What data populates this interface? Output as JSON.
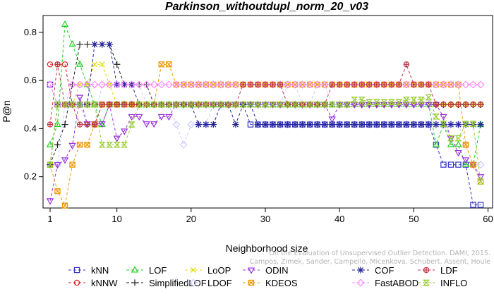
{
  "chart_data": {
    "type": "line",
    "title": "Parkinson_withoutdupl_norm_20_v03",
    "xlabel": "Neighborhood size",
    "ylabel": "P@n",
    "xlim": [
      1,
      59
    ],
    "ylim": [
      0.07,
      0.87
    ],
    "xticks": [
      1,
      10,
      20,
      30,
      40,
      50,
      60
    ],
    "yticks": [
      0.2,
      0.4,
      0.6,
      0.8
    ],
    "grid": false,
    "legend_position": "bottom",
    "credit": "Campos, Zimek, Sander, Campello, Micenkova, Schubert, Assent, Houle",
    "credit_line1": "On the Evaluation of Unsupervised Outlier Detection. DAMI, 2015.",
    "series": [
      {
        "name": "kNN",
        "color": "#3333cc",
        "marker": "square",
        "values": [
          0.583,
          0.5,
          0.5,
          0.5,
          0.5,
          0.5,
          0.5,
          0.5,
          0.5,
          0.5,
          0.5,
          0.5,
          0.5,
          0.5,
          0.5,
          0.5,
          0.5,
          0.5,
          0.5,
          0.5,
          0.5,
          0.5,
          0.5,
          0.5,
          0.5,
          0.5,
          0.5,
          0.417,
          0.417,
          0.417,
          0.417,
          0.417,
          0.417,
          0.417,
          0.417,
          0.417,
          0.417,
          0.417,
          0.417,
          0.417,
          0.417,
          0.417,
          0.417,
          0.417,
          0.417,
          0.417,
          0.417,
          0.417,
          0.417,
          0.417,
          0.417,
          0.417,
          0.333,
          0.25,
          0.25,
          0.25,
          0.25,
          0.083,
          0.083
        ]
      },
      {
        "name": "kNNW",
        "color": "#dd2222",
        "marker": "circle",
        "values": [
          0.667,
          0.667,
          0.667,
          0.5,
          0.5,
          0.5,
          0.5,
          0.5,
          0.5,
          0.5,
          0.5,
          0.5,
          0.5,
          0.5,
          0.5,
          0.5,
          0.5,
          0.5,
          0.5,
          0.5,
          0.5,
          0.5,
          0.5,
          0.5,
          0.5,
          0.5,
          0.5,
          0.5,
          0.5,
          0.5,
          0.5,
          0.5,
          0.5,
          0.5,
          0.5,
          0.5,
          0.5,
          0.5,
          0.5,
          0.5,
          0.5,
          0.5,
          0.5,
          0.5,
          0.5,
          0.5,
          0.5,
          0.5,
          0.5,
          0.5,
          0.5,
          0.5,
          0.5,
          0.5,
          0.5,
          0.5,
          0.5,
          0.5,
          0.5
        ]
      },
      {
        "name": "LOF",
        "color": "#22cc22",
        "marker": "triangle-up",
        "values": [
          0.333,
          0.417,
          0.833,
          0.75,
          0.667,
          0.583,
          0.5,
          0.417,
          0.5,
          0.5,
          0.5,
          0.5,
          0.5,
          0.5,
          0.5,
          0.5,
          0.5,
          0.5,
          0.5,
          0.5,
          0.5,
          0.5,
          0.5,
          0.5,
          0.5,
          0.5,
          0.5,
          0.5,
          0.5,
          0.5,
          0.5,
          0.5,
          0.5,
          0.5,
          0.5,
          0.5,
          0.5,
          0.5,
          0.5,
          0.5,
          0.5,
          0.5,
          0.5,
          0.5,
          0.5,
          0.5,
          0.5,
          0.5,
          0.5,
          0.5,
          0.5,
          0.5,
          0.333,
          0.417,
          0.333,
          0.333,
          0.25,
          0.25,
          0.417
        ]
      },
      {
        "name": "SimplifiedLOF",
        "color": "#222222",
        "marker": "plus",
        "values": [
          0.25,
          0.333,
          0.417,
          0.583,
          0.75,
          0.75,
          0.75,
          0.75,
          0.75,
          0.667,
          0.583,
          0.583,
          0.583,
          0.583,
          0.5,
          0.5,
          0.5,
          0.5,
          0.5,
          0.5,
          0.5,
          0.5,
          0.5,
          0.5,
          0.5,
          0.5,
          0.5,
          0.5,
          0.5,
          0.5,
          0.5,
          0.5,
          0.5,
          0.5,
          0.5,
          0.5,
          0.5,
          0.5,
          0.5,
          0.5,
          0.5,
          0.5,
          0.5,
          0.5,
          0.5,
          0.5,
          0.5,
          0.5,
          0.5,
          0.5,
          0.5,
          0.5,
          0.5,
          0.5,
          0.5,
          0.5,
          0.5,
          0.5,
          0.5
        ]
      },
      {
        "name": "LoOP",
        "color": "#dddd00",
        "marker": "x",
        "values": [
          0.25,
          0.5,
          0.5,
          0.5,
          0.583,
          0.583,
          0.667,
          0.667,
          0.583,
          0.5,
          0.5,
          0.5,
          0.5,
          0.5,
          0.5,
          0.5,
          0.5,
          0.5,
          0.5,
          0.5,
          0.5,
          0.5,
          0.5,
          0.5,
          0.5,
          0.5,
          0.5,
          0.5,
          0.5,
          0.5,
          0.5,
          0.5,
          0.5,
          0.5,
          0.5,
          0.5,
          0.5,
          0.5,
          0.5,
          0.5,
          0.5,
          0.5,
          0.5,
          0.5,
          0.5,
          0.5,
          0.5,
          0.5,
          0.5,
          0.5,
          0.5,
          0.5,
          0.5,
          0.5,
          0.5,
          0.5,
          0.5,
          0.5,
          0.5
        ]
      },
      {
        "name": "LDOF",
        "color": "#ccccff",
        "marker": "diamond",
        "values": [
          0.25,
          0.25,
          0.5,
          0.5,
          0.5,
          0.417,
          0.417,
          0.583,
          0.583,
          0.583,
          0.583,
          0.583,
          0.583,
          0.5,
          0.5,
          0.5,
          0.5,
          0.417,
          0.333,
          0.417,
          0.417,
          0.417,
          0.5,
          0.5,
          0.5,
          0.5,
          0.5,
          0.5,
          0.5,
          0.5,
          0.5,
          0.5,
          0.583,
          0.583,
          0.5,
          0.5,
          0.583,
          0.583,
          0.5,
          0.5,
          0.5,
          0.5,
          0.5,
          0.5,
          0.5,
          0.5,
          0.5,
          0.5,
          0.5,
          0.5,
          0.5,
          0.5,
          0.417,
          0.417,
          0.417,
          0.417,
          0.333,
          0.25,
          0.25
        ]
      },
      {
        "name": "ODIN",
        "color": "#9933dd",
        "marker": "triangle-down",
        "values": [
          0.1,
          0.25,
          0.27,
          0.33,
          0.53,
          0.42,
          0.42,
          0.42,
          0.5,
          0.36,
          0.39,
          0.45,
          0.45,
          0.42,
          0.42,
          0.45,
          0.45,
          0.5,
          0.5,
          0.5,
          0.5,
          0.5,
          0.5,
          0.5,
          0.5,
          0.5,
          0.5,
          0.5,
          0.5,
          0.5,
          0.5,
          0.5,
          0.5,
          0.5,
          0.5,
          0.5,
          0.5,
          0.5,
          0.44,
          0.5,
          0.5,
          0.5,
          0.5,
          0.5,
          0.5,
          0.5,
          0.5,
          0.5,
          0.5,
          0.5,
          0.5,
          0.5,
          0.5,
          0.45,
          0.36,
          0.3,
          0.27,
          0.25,
          0.2
        ]
      },
      {
        "name": "KDEOS",
        "color": "#ee9900",
        "marker": "square-x",
        "values": [
          0.25,
          0.14,
          0.08,
          0.25,
          0.333,
          0.333,
          0.417,
          0.5,
          0.5,
          0.5,
          0.5,
          0.5,
          0.5,
          0.5,
          0.5,
          0.667,
          0.667,
          0.583,
          0.583,
          0.583,
          0.583,
          0.583,
          0.583,
          0.583,
          0.583,
          0.583,
          0.583,
          0.583,
          0.583,
          0.583,
          0.583,
          0.583,
          0.583,
          0.583,
          0.583,
          0.583,
          0.583,
          0.583,
          0.583,
          0.583,
          0.583,
          0.583,
          0.583,
          0.583,
          0.583,
          0.583,
          0.583,
          0.583,
          0.583,
          0.583,
          0.583,
          0.583,
          0.583,
          0.583,
          0.583,
          0.583,
          0.333,
          0.25,
          0.18
        ]
      },
      {
        "name": "COF",
        "color": "#222299",
        "marker": "asterisk",
        "values": [
          0.25,
          0.5,
          0.5,
          0.5,
          0.5,
          0.5,
          0.75,
          0.75,
          0.75,
          0.583,
          0.583,
          0.583,
          0.5,
          0.5,
          0.5,
          0.5,
          0.5,
          0.5,
          0.5,
          0.5,
          0.417,
          0.417,
          0.417,
          0.5,
          0.5,
          0.417,
          0.5,
          0.5,
          0.417,
          0.417,
          0.417,
          0.417,
          0.417,
          0.417,
          0.417,
          0.417,
          0.417,
          0.417,
          0.417,
          0.417,
          0.417,
          0.417,
          0.417,
          0.417,
          0.417,
          0.417,
          0.417,
          0.417,
          0.417,
          0.417,
          0.417,
          0.417,
          0.417,
          0.417,
          0.417,
          0.417,
          0.417,
          0.417,
          0.417
        ]
      },
      {
        "name": "FastABOD",
        "color": "#ff88ff",
        "marker": "diamond-open",
        "values": [
          0.583,
          0.5,
          0.5,
          0.583,
          0.583,
          0.583,
          0.583,
          0.583,
          0.583,
          0.583,
          0.583,
          0.583,
          0.583,
          0.583,
          0.583,
          0.583,
          0.583,
          0.583,
          0.583,
          0.583,
          0.583,
          0.583,
          0.583,
          0.583,
          0.583,
          0.583,
          0.583,
          0.583,
          0.583,
          0.583,
          0.583,
          0.583,
          0.583,
          0.583,
          0.583,
          0.583,
          0.583,
          0.583,
          0.583,
          0.583,
          0.583,
          0.583,
          0.583,
          0.583,
          0.583,
          0.583,
          0.583,
          0.583,
          0.583,
          0.583,
          0.583,
          0.583,
          0.583,
          0.583,
          0.583,
          0.583,
          0.583,
          0.583,
          0.583
        ]
      },
      {
        "name": "LDF",
        "color": "#bb3344",
        "marker": "circle-plus",
        "values": [
          0.417,
          0.667,
          0.5,
          0.5,
          0.417,
          0.417,
          0.417,
          0.5,
          0.5,
          0.5,
          0.5,
          0.5,
          0.5,
          0.5,
          0.5,
          0.5,
          0.5,
          0.5,
          0.5,
          0.5,
          0.5,
          0.5,
          0.5,
          0.5,
          0.5,
          0.5,
          0.583,
          0.583,
          0.583,
          0.583,
          0.583,
          0.583,
          0.5,
          0.5,
          0.5,
          0.5,
          0.5,
          0.5,
          0.583,
          0.583,
          0.583,
          0.583,
          0.583,
          0.583,
          0.583,
          0.583,
          0.583,
          0.583,
          0.667,
          0.583,
          0.583,
          0.583,
          0.5,
          0.5,
          0.5,
          0.5,
          0.5,
          0.5,
          0.5
        ]
      },
      {
        "name": "INFLO",
        "color": "#99cc33",
        "marker": "hourglass",
        "values": [
          0.25,
          0.5,
          0.5,
          0.5,
          0.5,
          0.5,
          0.5,
          0.333,
          0.333,
          0.333,
          0.333,
          0.417,
          0.5,
          0.5,
          0.5,
          0.5,
          0.5,
          0.5,
          0.5,
          0.5,
          0.5,
          0.5,
          0.5,
          0.5,
          0.5,
          0.5,
          0.5,
          0.5,
          0.5,
          0.5,
          0.5,
          0.5,
          0.5,
          0.5,
          0.5,
          0.5,
          0.5,
          0.5,
          0.5,
          0.5,
          0.5,
          0.52,
          0.52,
          0.51,
          0.51,
          0.51,
          0.51,
          0.51,
          0.52,
          0.52,
          0.52,
          0.53,
          0.45,
          0.42,
          0.36,
          0.36,
          0.42,
          0.42,
          0.18
        ]
      }
    ]
  }
}
